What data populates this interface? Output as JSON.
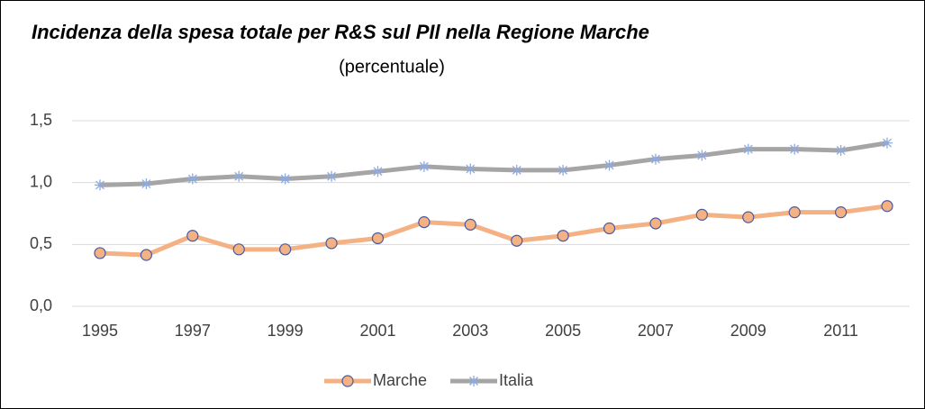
{
  "chart_data": {
    "type": "line",
    "title": "Incidenza della spesa totale per R&S sul PIl nella Regione Marche",
    "subtitle": "(percentuale)",
    "x": [
      1995,
      1996,
      1997,
      1998,
      1999,
      2000,
      2001,
      2002,
      2003,
      2004,
      2005,
      2006,
      2007,
      2008,
      2009,
      2010,
      2011,
      2012
    ],
    "xlim": [
      1995,
      2012
    ],
    "xticks": [
      1995,
      1997,
      1999,
      2001,
      2003,
      2005,
      2007,
      2009,
      2011
    ],
    "ylim": [
      0,
      1.5
    ],
    "yticks": [
      {
        "value": 0,
        "label": "0,0"
      },
      {
        "value": 0.5,
        "label": "0,5"
      },
      {
        "value": 1,
        "label": "1,0"
      },
      {
        "value": 1.5,
        "label": "1,5"
      }
    ],
    "grid": true,
    "legend": "bottom",
    "series": [
      {
        "name": "Marche",
        "color": "#f4b183",
        "marker_color": "#4a5aa0",
        "values": [
          0.43,
          0.415,
          0.57,
          0.46,
          0.46,
          0.51,
          0.55,
          0.68,
          0.66,
          0.53,
          0.57,
          0.63,
          0.67,
          0.74,
          0.72,
          0.76,
          0.76,
          0.81
        ]
      },
      {
        "name": "Italia",
        "color": "#a5a5a5",
        "marker_color": "#8faadc",
        "values": [
          0.98,
          0.99,
          1.03,
          1.05,
          1.03,
          1.05,
          1.09,
          1.13,
          1.11,
          1.1,
          1.1,
          1.14,
          1.19,
          1.22,
          1.27,
          1.27,
          1.26,
          1.32
        ]
      }
    ]
  }
}
